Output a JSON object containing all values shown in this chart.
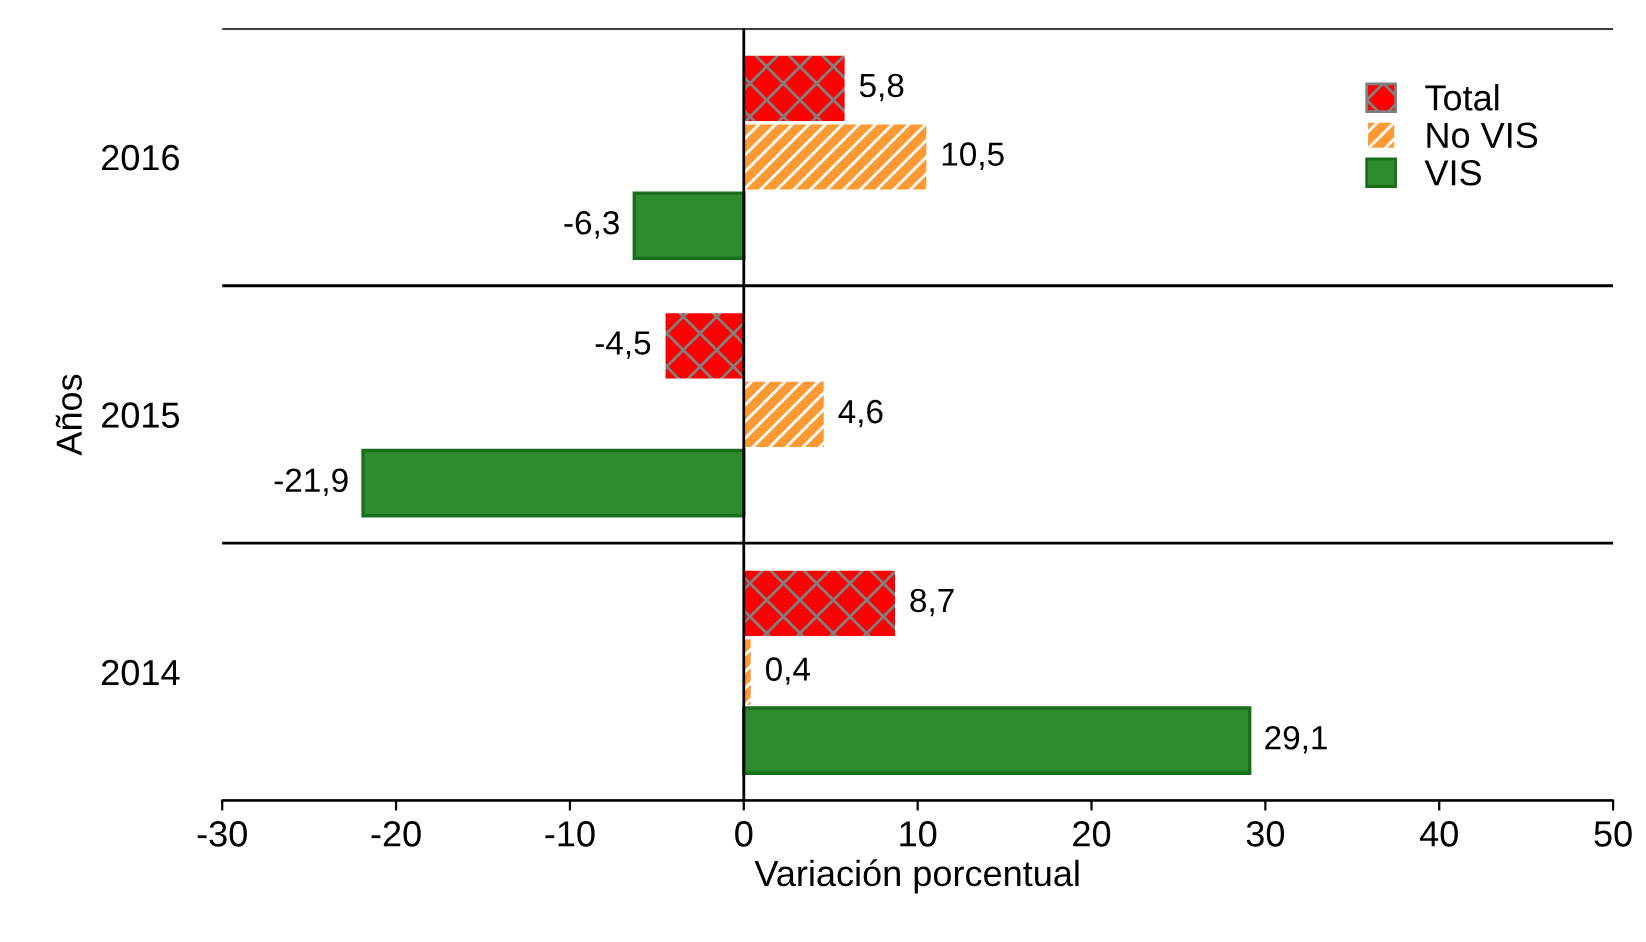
{
  "chart_data": {
    "type": "bar",
    "orientation": "horizontal",
    "xlabel": "Variación porcentual",
    "ylabel": "Años",
    "categories": [
      "2016",
      "2015",
      "2014"
    ],
    "series": [
      {
        "name": "Total",
        "color": "#ff0000",
        "values": [
          5.8,
          -4.5,
          8.7
        ],
        "value_labels": [
          "5,8",
          "-4,5",
          "8,7"
        ]
      },
      {
        "name": "No VIS",
        "color": "#ff9933",
        "values": [
          10.5,
          4.6,
          0.4
        ],
        "value_labels": [
          "10,5",
          "4,6",
          "0,4"
        ]
      },
      {
        "name": "VIS",
        "color": "#2e8b2e",
        "values": [
          -6.3,
          -21.9,
          29.1
        ],
        "value_labels": [
          "-6,3",
          "-21,9",
          "29,1"
        ]
      }
    ],
    "xlim": [
      -30,
      50
    ],
    "xticks": [
      -30,
      -20,
      -10,
      0,
      10,
      20,
      30,
      40,
      50
    ],
    "grid": "y",
    "ref_lines": [
      {
        "axis": "x",
        "value": 0
      }
    ],
    "legend": "top right"
  }
}
